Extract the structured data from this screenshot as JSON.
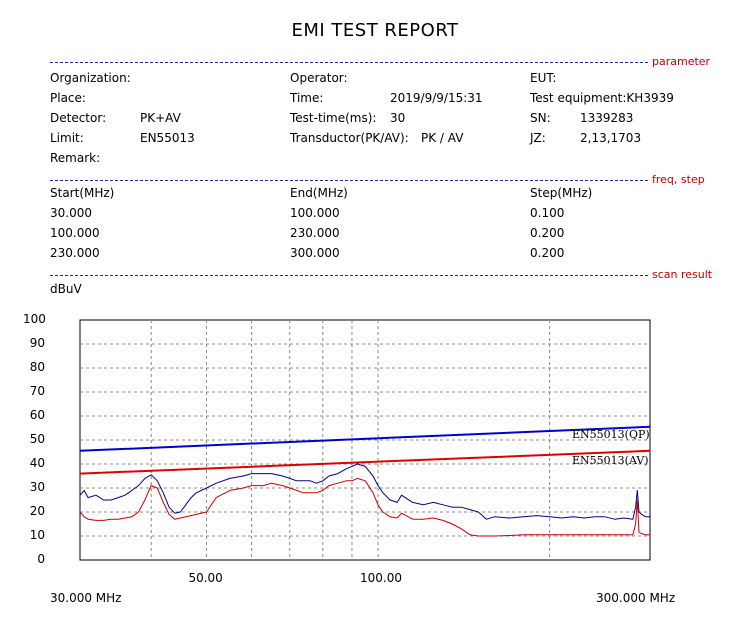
{
  "title": "EMI TEST REPORT",
  "sections": {
    "parameter": "parameter",
    "freq_step": "freq, step",
    "scan_result": "scan result"
  },
  "parameter": {
    "organization_label": "Organization:",
    "place_label": "Place:",
    "detector_label": "Detector:",
    "detector_value": "PK+AV",
    "limit_label": "Limit:",
    "limit_value": "EN55013",
    "remark_label": "Remark:",
    "operator_label": "Operator:",
    "time_label": "Time:",
    "time_value": "2019/9/9/15:31",
    "testtime_label": "Test-time(ms):",
    "testtime_value": "30",
    "transductor_label": "Transductor(PK/AV):",
    "transductor_value": "PK  /  AV",
    "eut_label": "EUT:",
    "equipment_label": "Test equipment:KH3939",
    "sn_label": "SN:",
    "sn_value": "1339283",
    "jz_label": "JZ:",
    "jz_value": "2,13,1703"
  },
  "freq_step": {
    "headers": [
      "Start(MHz)",
      "End(MHz)",
      "Step(MHz)"
    ],
    "rows": [
      [
        "30.000",
        "100.000",
        "0.100"
      ],
      [
        "100.000",
        "230.000",
        "0.200"
      ],
      [
        "230.000",
        "300.000",
        "0.200"
      ]
    ]
  },
  "chart_data": {
    "type": "line",
    "title": "",
    "ylabel": "dBuV",
    "xlabel": "",
    "x_start_label": "30.000 MHz",
    "x_end_label": "300.000 MHz",
    "x_tick_labels": [
      {
        "x": 50,
        "label": "50.00"
      },
      {
        "x": 100,
        "label": "100.00"
      }
    ],
    "x_scale": "log",
    "xlim": [
      30,
      300
    ],
    "ylim": [
      0,
      100
    ],
    "y_ticks": [
      0,
      10,
      20,
      30,
      40,
      50,
      60,
      70,
      80,
      90,
      100
    ],
    "x_gridlines": [
      40,
      50,
      60,
      70,
      80,
      90,
      100,
      200
    ],
    "grid": true,
    "colors": {
      "pk": "#00008b",
      "av": "#cc0000",
      "limit_qp": "#0000cc",
      "limit_av": "#dd0000",
      "grid": "#888888"
    },
    "series": [
      {
        "name": "EN55013(QP)",
        "kind": "limit",
        "x": [
          30,
          300
        ],
        "y": [
          45.5,
          55.5
        ]
      },
      {
        "name": "EN55013(AV)",
        "kind": "limit",
        "x": [
          30,
          300
        ],
        "y": [
          36,
          45.5
        ]
      },
      {
        "name": "PK",
        "kind": "measurement",
        "x": [
          30,
          30.5,
          31,
          32,
          33,
          34,
          35,
          36,
          37,
          38,
          39,
          40,
          41,
          42,
          43,
          44,
          45,
          46,
          47,
          48,
          50,
          52,
          55,
          58,
          60,
          63,
          65,
          68,
          70,
          72,
          74,
          76,
          78,
          80,
          82,
          85,
          88,
          90,
          92,
          95,
          98,
          100,
          102,
          105,
          108,
          110,
          115,
          120,
          125,
          130,
          135,
          140,
          145,
          150,
          155,
          160,
          170,
          180,
          190,
          200,
          210,
          220,
          230,
          240,
          250,
          260,
          270,
          280,
          283,
          285,
          287,
          290,
          295,
          300
        ],
        "y": [
          27,
          29,
          26,
          27,
          25,
          25,
          26,
          27,
          29,
          31,
          34,
          35.5,
          33,
          28,
          22,
          19.5,
          20,
          23,
          26,
          28,
          30,
          32,
          34,
          35,
          36,
          36,
          36,
          35,
          34,
          33,
          33,
          33,
          32,
          33,
          35,
          36,
          38,
          39,
          40,
          39,
          35,
          31,
          28,
          25,
          24,
          27,
          24,
          23,
          24,
          23,
          22,
          22,
          21,
          20,
          17,
          18,
          17.5,
          18,
          18.5,
          18,
          17.5,
          18,
          17.5,
          18,
          18,
          17,
          17.5,
          17,
          22,
          29,
          20,
          19,
          18,
          18
        ]
      },
      {
        "name": "AV",
        "kind": "measurement",
        "x": [
          30,
          30.5,
          31,
          32,
          33,
          34,
          35,
          36,
          37,
          38,
          39,
          40,
          41,
          42,
          43,
          44,
          45,
          46,
          47,
          48,
          50,
          52,
          55,
          58,
          60,
          63,
          65,
          68,
          70,
          72,
          74,
          76,
          78,
          80,
          82,
          85,
          88,
          90,
          92,
          95,
          98,
          100,
          102,
          105,
          108,
          110,
          115,
          120,
          125,
          130,
          135,
          140,
          145,
          150,
          155,
          160,
          170,
          180,
          190,
          200,
          210,
          220,
          230,
          240,
          250,
          260,
          270,
          280,
          283,
          285,
          287,
          290,
          295,
          300
        ],
        "y": [
          20,
          18,
          17,
          16.5,
          16.5,
          17,
          17,
          17.5,
          18,
          20,
          25,
          31,
          30,
          24,
          19,
          17,
          17.5,
          18,
          18.5,
          19,
          20,
          26,
          29,
          30,
          31,
          31,
          32,
          31,
          30,
          29,
          28,
          28,
          28,
          29,
          31,
          32,
          33,
          33,
          34,
          33,
          28,
          23,
          20,
          18,
          17.5,
          19.5,
          17,
          17,
          17.5,
          16.5,
          15,
          13,
          10.5,
          10,
          10,
          10,
          10.2,
          10.5,
          10.5,
          10.5,
          10.5,
          10.5,
          10.5,
          10.5,
          10.5,
          10.5,
          10.5,
          10.5,
          15,
          25,
          11.5,
          11,
          10.5,
          10.5
        ]
      }
    ]
  }
}
